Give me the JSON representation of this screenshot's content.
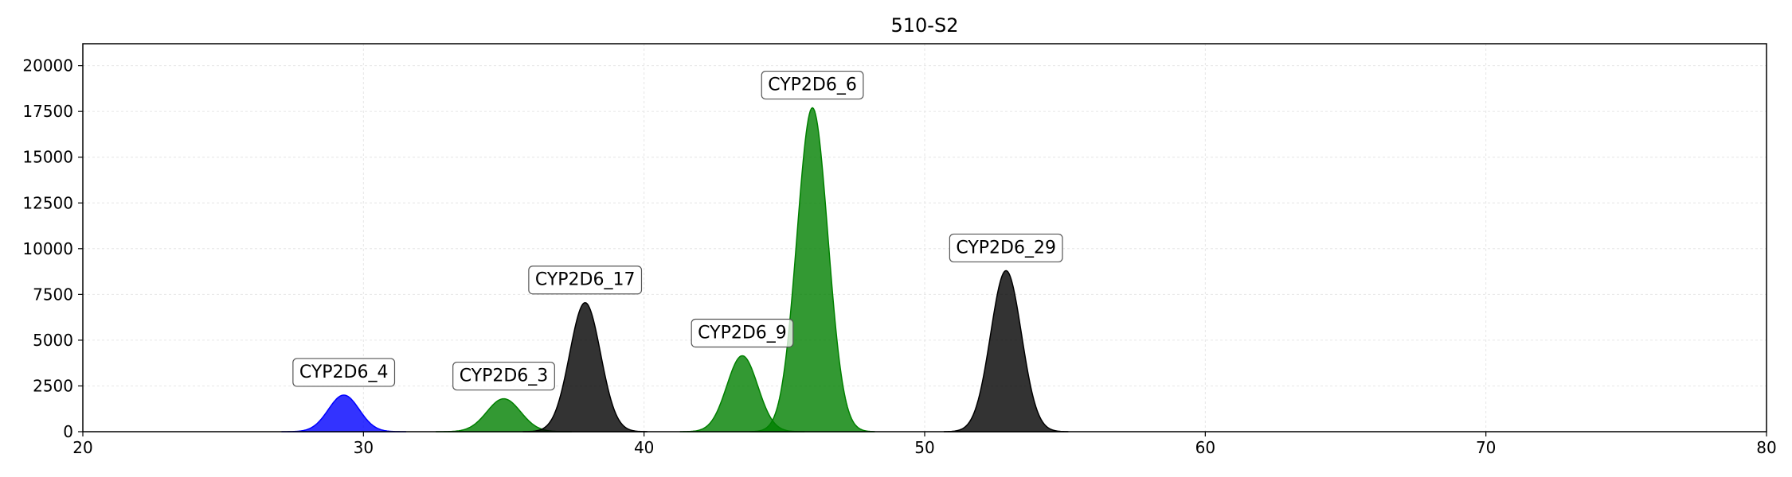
{
  "chart_data": {
    "type": "area",
    "title": "510-S2",
    "xlabel": "",
    "ylabel": "",
    "xlim": [
      20,
      80
    ],
    "ylim": [
      0,
      21200
    ],
    "xticks": [
      20,
      30,
      40,
      50,
      60,
      70,
      80
    ],
    "yticks": [
      0,
      2500,
      5000,
      7500,
      10000,
      12500,
      15000,
      17500,
      20000
    ],
    "grid": true,
    "peaks": [
      {
        "label": "CYP2D6_4",
        "center": 29.3,
        "height": 2000,
        "sigma": 0.55,
        "color": "#0000ff"
      },
      {
        "label": "CYP2D6_3",
        "center": 35.0,
        "height": 1800,
        "sigma": 0.6,
        "color": "#008000"
      },
      {
        "label": "CYP2D6_17",
        "center": 37.9,
        "height": 7050,
        "sigma": 0.55,
        "color": "#000000"
      },
      {
        "label": "CYP2D6_9",
        "center": 43.5,
        "height": 4150,
        "sigma": 0.55,
        "color": "#008000"
      },
      {
        "label": "CYP2D6_6",
        "center": 46.0,
        "height": 17700,
        "sigma": 0.55,
        "color": "#008000"
      },
      {
        "label": "CYP2D6_29",
        "center": 52.9,
        "height": 8800,
        "sigma": 0.55,
        "color": "#000000"
      }
    ]
  }
}
